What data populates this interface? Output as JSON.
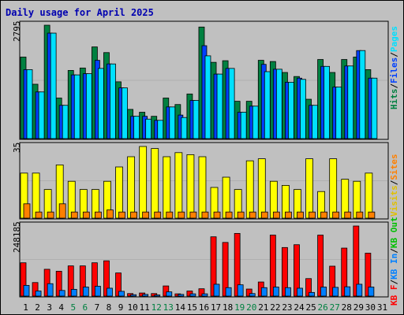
{
  "chart_data": {
    "type": "bar",
    "title": "Daily usage for April 2025",
    "categories": [
      "1",
      "2",
      "3",
      "4",
      "5",
      "6",
      "7",
      "8",
      "9",
      "10",
      "11",
      "12",
      "13",
      "14",
      "15",
      "16",
      "17",
      "18",
      "19",
      "20",
      "21",
      "22",
      "23",
      "24",
      "25",
      "26",
      "27",
      "28",
      "29",
      "30",
      "31"
    ],
    "weekend_days": [
      "5",
      "6",
      "12",
      "13",
      "19",
      "20",
      "26",
      "27"
    ],
    "colors": {
      "hits": "#008040",
      "files": "#0040ff",
      "pages": "#00e0ff",
      "visits": "#ffff00",
      "sites": "#ff8000",
      "kbf": "#ff0000",
      "kbin": "#0080ff",
      "kbout": "#00c000",
      "weekend_label": "#008040",
      "weekday_label": "#000000"
    },
    "panels": [
      {
        "ymax_label": "2795",
        "ymax": 2795,
        "legend": [
          {
            "text": "Hits",
            "color": "#008040"
          },
          {
            "text": "/",
            "color": "#000000"
          },
          {
            "text": "Files",
            "color": "#0040ff"
          },
          {
            "text": "/",
            "color": "#000000"
          },
          {
            "text": "Pages",
            "color": "#00e0ff"
          }
        ],
        "series": [
          {
            "name": "Hits",
            "color": "#008040",
            "values": [
              2010,
              1340,
              2795,
              1000,
              1680,
              1740,
              2260,
              2120,
              1400,
              720,
              650,
              550,
              1000,
              840,
              1100,
              2750,
              1880,
              1920,
              920,
              920,
              1930,
              1900,
              1630,
              1530,
              970,
              1950,
              1630,
              1950,
              2010,
              1700,
              0
            ]
          },
          {
            "name": "Files",
            "color": "#0040ff",
            "values": [
              1700,
              1150,
              2600,
              820,
              1570,
              1600,
              1930,
              1840,
              1250,
              550,
              550,
              450,
              780,
              580,
              940,
              2290,
              1590,
              1730,
              650,
              800,
              1830,
              1710,
              1390,
              1490,
              820,
              1780,
              1270,
              1790,
              2170,
              1490,
              0
            ]
          },
          {
            "name": "Pages",
            "color": "#00e0ff",
            "values": [
              1700,
              1150,
              2600,
              820,
              1570,
              1600,
              1730,
              1840,
              1250,
              550,
              480,
              450,
              780,
              520,
              940,
              2040,
              1590,
              1730,
              650,
              800,
              1650,
              1710,
              1390,
              1460,
              820,
              1780,
              1270,
              1790,
              2170,
              1490,
              0
            ]
          }
        ]
      },
      {
        "ymax_label": "35",
        "ymax": 35,
        "legend": [
          {
            "text": "Visits",
            "color": "#e0c000"
          },
          {
            "text": "/",
            "color": "#000000"
          },
          {
            "text": "Sites",
            "color": "#ff8000"
          }
        ],
        "series": [
          {
            "name": "Visits",
            "color": "#ffff00",
            "values": [
              22,
              22,
              14,
              26,
              18,
              14,
              14,
              18,
              25,
              30,
              35,
              34,
              30,
              32,
              31,
              30,
              15,
              20,
              14,
              28,
              29,
              18,
              16,
              14,
              29,
              13,
              29,
              19,
              18,
              22,
              0
            ]
          },
          {
            "name": "Sites",
            "color": "#ff8000",
            "values": [
              7,
              3,
              3,
              7,
              3,
              3,
              3,
              4,
              3,
              3,
              3,
              3,
              3,
              3,
              3,
              3,
              3,
              3,
              3,
              3,
              3,
              3,
              3,
              3,
              3,
              3,
              3,
              3,
              3,
              3,
              0
            ]
          }
        ]
      },
      {
        "ymax_label": "248185",
        "ymax": 248185,
        "legend": [
          {
            "text": "KB F",
            "color": "#ff0000"
          },
          {
            "text": "/",
            "color": "#000000"
          },
          {
            "text": "KB In",
            "color": "#0080ff"
          },
          {
            "text": "/",
            "color": "#000000"
          },
          {
            "text": "KB Out",
            "color": "#00c000"
          }
        ],
        "series": [
          {
            "name": "KB F",
            "color": "#ff0000",
            "values": [
              118000,
              48000,
              95000,
              88000,
              107000,
              107000,
              118000,
              125000,
              82000,
              9000,
              11000,
              9000,
              36000,
              8000,
              18000,
              26000,
              210000,
              190000,
              222000,
              25000,
              50000,
              216000,
              172000,
              182000,
              62000,
              216000,
              106000,
              170000,
              248185,
              152000,
              0
            ]
          },
          {
            "name": "KB In",
            "color": "#0080ff",
            "values": [
              38000,
              18000,
              44000,
              20000,
              24000,
              32000,
              35000,
              28000,
              17000,
              5000,
              6000,
              4000,
              15000,
              6000,
              8000,
              8000,
              42000,
              30000,
              40000,
              9000,
              30000,
              32000,
              30000,
              28000,
              13000,
              32000,
              31000,
              33000,
              42000,
              32000,
              0
            ]
          },
          {
            "name": "KB Out",
            "color": "#00c000",
            "values": [
              0,
              0,
              0,
              0,
              0,
              0,
              0,
              0,
              0,
              0,
              0,
              0,
              0,
              0,
              0,
              0,
              0,
              0,
              0,
              0,
              0,
              0,
              0,
              0,
              0,
              0,
              0,
              0,
              0,
              0,
              0
            ]
          }
        ]
      }
    ]
  }
}
